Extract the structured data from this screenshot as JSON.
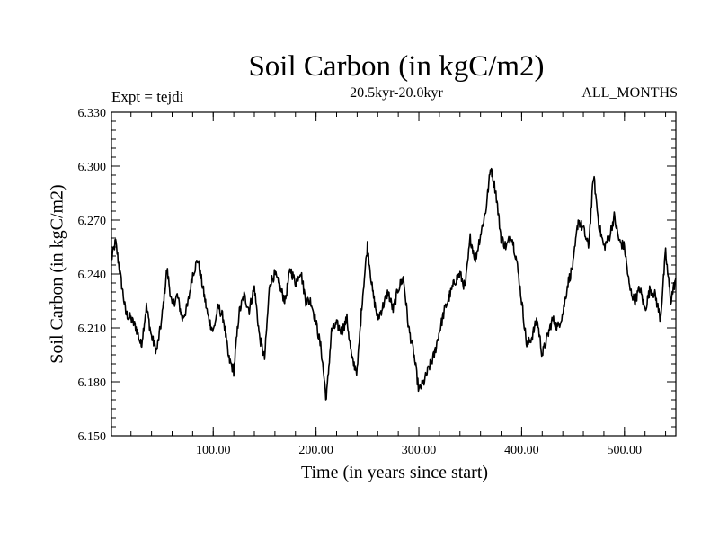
{
  "chart_data": {
    "type": "line",
    "title": "Soil Carbon (in kgC/m2)",
    "subtitle": "20.5kyr-20.0kyr",
    "left_annotation": "Expt = tejdi",
    "right_annotation": "ALL_MONTHS",
    "xlabel": "Time (in years since start)",
    "ylabel": "Soil Carbon (in kgC/m2)",
    "xlim": [
      1,
      550
    ],
    "ylim": [
      6.15,
      6.33
    ],
    "xticks": [
      100,
      200,
      300,
      400,
      500
    ],
    "xtick_labels": [
      "100.00",
      "200.00",
      "300.00",
      "400.00",
      "500.00"
    ],
    "yticks": [
      6.15,
      6.18,
      6.21,
      6.24,
      6.27,
      6.3,
      6.33
    ],
    "ytick_labels": [
      "6.150",
      "6.180",
      "6.210",
      "6.240",
      "6.270",
      "6.300",
      "6.330"
    ],
    "grid": false,
    "series": [
      {
        "name": "Soil Carbon",
        "x": [
          1,
          5,
          10,
          15,
          20,
          25,
          30,
          35,
          40,
          45,
          50,
          55,
          60,
          65,
          70,
          75,
          80,
          85,
          90,
          95,
          100,
          105,
          110,
          115,
          120,
          125,
          130,
          135,
          140,
          145,
          150,
          155,
          160,
          165,
          170,
          175,
          180,
          185,
          190,
          195,
          200,
          205,
          210,
          215,
          220,
          225,
          230,
          235,
          240,
          245,
          250,
          255,
          260,
          265,
          270,
          275,
          280,
          285,
          290,
          295,
          300,
          305,
          310,
          315,
          320,
          325,
          330,
          335,
          340,
          345,
          350,
          355,
          360,
          365,
          370,
          375,
          380,
          385,
          390,
          395,
          400,
          405,
          410,
          415,
          420,
          425,
          430,
          435,
          440,
          445,
          450,
          455,
          460,
          465,
          470,
          475,
          480,
          485,
          490,
          495,
          500,
          505,
          510,
          515,
          520,
          525,
          530,
          535,
          540,
          545,
          550
        ],
        "values": [
          6.248,
          6.258,
          6.238,
          6.218,
          6.215,
          6.21,
          6.2,
          6.222,
          6.205,
          6.197,
          6.215,
          6.243,
          6.222,
          6.228,
          6.215,
          6.222,
          6.24,
          6.248,
          6.232,
          6.216,
          6.208,
          6.222,
          6.215,
          6.193,
          6.186,
          6.218,
          6.228,
          6.22,
          6.233,
          6.205,
          6.193,
          6.235,
          6.24,
          6.232,
          6.225,
          6.243,
          6.235,
          6.242,
          6.225,
          6.225,
          6.213,
          6.198,
          6.17,
          6.208,
          6.212,
          6.208,
          6.215,
          6.192,
          6.186,
          6.226,
          6.256,
          6.23,
          6.215,
          6.222,
          6.23,
          6.22,
          6.232,
          6.238,
          6.21,
          6.196,
          6.175,
          6.18,
          6.188,
          6.195,
          6.208,
          6.22,
          6.228,
          6.236,
          6.24,
          6.232,
          6.26,
          6.248,
          6.262,
          6.275,
          6.3,
          6.285,
          6.26,
          6.255,
          6.262,
          6.248,
          6.225,
          6.2,
          6.205,
          6.215,
          6.195,
          6.205,
          6.215,
          6.21,
          6.218,
          6.235,
          6.245,
          6.27,
          6.265,
          6.255,
          6.295,
          6.268,
          6.255,
          6.26,
          6.272,
          6.258,
          6.255,
          6.232,
          6.225,
          6.232,
          6.22,
          6.232,
          6.228,
          6.215,
          6.252,
          6.225,
          6.238
        ]
      }
    ]
  }
}
